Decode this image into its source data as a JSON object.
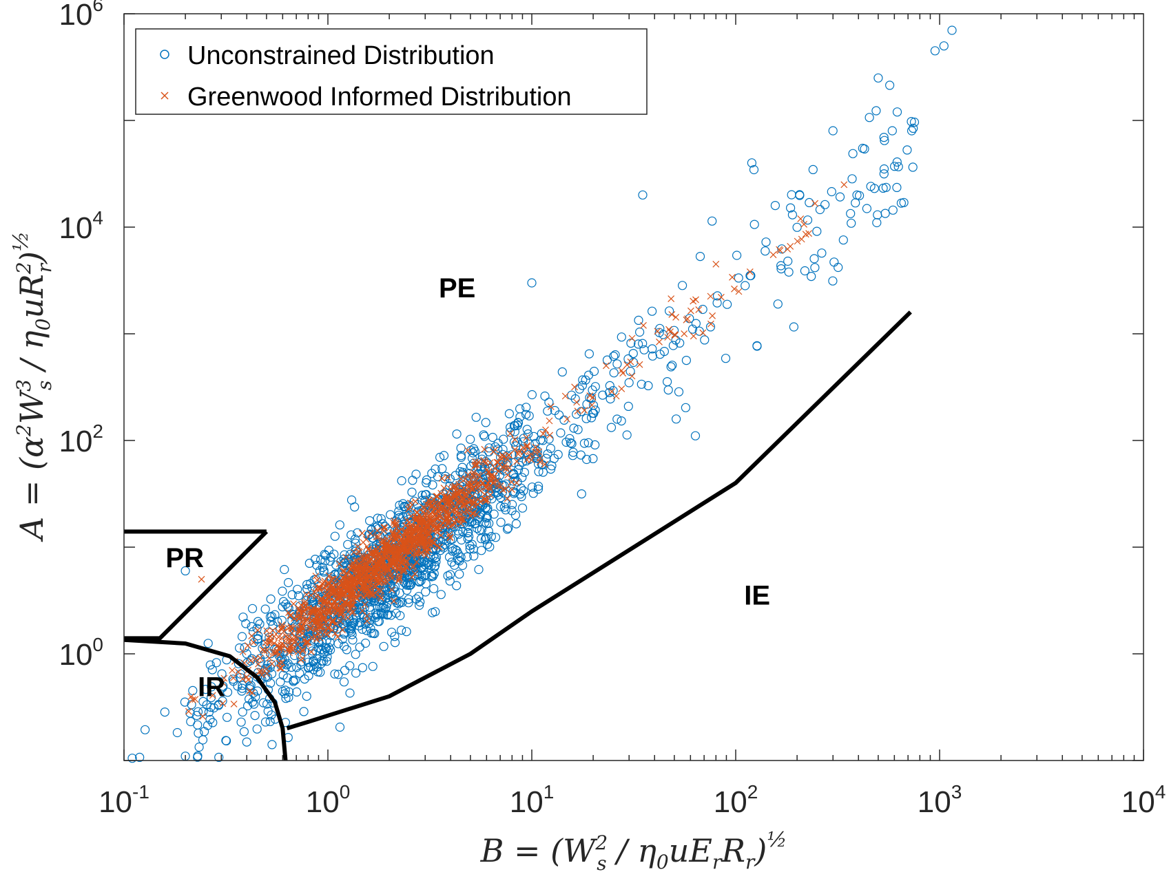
{
  "chart_data": {
    "type": "scatter",
    "xscale": "log",
    "yscale": "log",
    "xlim": [
      0.1,
      10000
    ],
    "ylim": [
      0.1,
      1000000
    ],
    "grid": false,
    "legend_position": "top-left",
    "xlabel": "B = (W_s^2 / η_0 u E_r R_r)^(1/2)",
    "ylabel": "A = (α^2 W_s^3 / η_0 u R_r^2)^(1/2)",
    "x_ticks": [
      {
        "base": "10",
        "exp": "-1",
        "value": 0.1
      },
      {
        "base": "10",
        "exp": "0",
        "value": 1
      },
      {
        "base": "10",
        "exp": "1",
        "value": 10
      },
      {
        "base": "10",
        "exp": "2",
        "value": 100
      },
      {
        "base": "10",
        "exp": "3",
        "value": 1000
      },
      {
        "base": "10",
        "exp": "4",
        "value": 10000
      }
    ],
    "y_ticks": [
      {
        "base": "10",
        "exp": "0",
        "value": 1
      },
      {
        "base": "10",
        "exp": "2",
        "value": 100
      },
      {
        "base": "10",
        "exp": "4",
        "value": 10000
      },
      {
        "base": "10",
        "exp": "6",
        "value": 1000000
      }
    ],
    "series": [
      {
        "name": "Unconstrained Distribution",
        "marker": "circle",
        "color": "#0072BD",
        "trend": {
          "log10_a": 0.35,
          "slope": 1.5,
          "spread": 0.28
        },
        "x_range": [
          0.1,
          1200
        ],
        "outliers": [
          [
            0.2,
            6.0
          ],
          [
            0.4,
            1.0
          ],
          [
            1.2,
            2.5
          ],
          [
            10,
            3000
          ],
          [
            35,
            20000
          ],
          [
            120,
            40000
          ],
          [
            300,
            80000
          ],
          [
            500,
            250000
          ],
          [
            620,
            120000
          ],
          [
            730,
            80000
          ],
          [
            950,
            450000
          ],
          [
            1050,
            500000
          ],
          [
            1150,
            700000
          ]
        ]
      },
      {
        "name": "Greenwood Informed Distribution",
        "marker": "x",
        "color": "#D95319",
        "trend": {
          "log10_a": 0.45,
          "slope": 1.5,
          "spread": 0.13
        },
        "x_range": [
          0.2,
          340
        ],
        "outliers": [
          [
            340,
            25000
          ],
          [
            80,
            4500
          ],
          [
            0.24,
            5.0
          ]
        ]
      }
    ],
    "region_boundaries": [
      {
        "name": "PR-PE",
        "points": [
          [
            0.1,
            14
          ],
          [
            0.5,
            14
          ]
        ]
      },
      {
        "name": "PR-IR",
        "points": [
          [
            0.1,
            1.4
          ],
          [
            0.15,
            1.4
          ],
          [
            0.5,
            14
          ]
        ]
      },
      {
        "name": "IR-top",
        "points": [
          [
            0.1,
            1.35
          ],
          [
            0.2,
            1.25
          ],
          [
            0.33,
            0.95
          ],
          [
            0.45,
            0.6
          ],
          [
            0.55,
            0.35
          ],
          [
            0.6,
            0.2
          ],
          [
            0.62,
            0.1
          ]
        ]
      },
      {
        "name": "IE",
        "points": [
          [
            0.63,
            0.2
          ],
          [
            0.8,
            0.23
          ],
          [
            2,
            0.4
          ],
          [
            5,
            1.0
          ],
          [
            10,
            2.5
          ],
          [
            100,
            40
          ],
          [
            720,
            1600
          ]
        ]
      }
    ],
    "region_labels": [
      {
        "text": "PE",
        "x": 3.5,
        "y": 2200
      },
      {
        "text": "PR",
        "x": 0.16,
        "y": 6.5
      },
      {
        "text": "IR",
        "x": 0.23,
        "y": 0.4
      },
      {
        "text": "IE",
        "x": 110,
        "y": 2.9
      }
    ]
  }
}
